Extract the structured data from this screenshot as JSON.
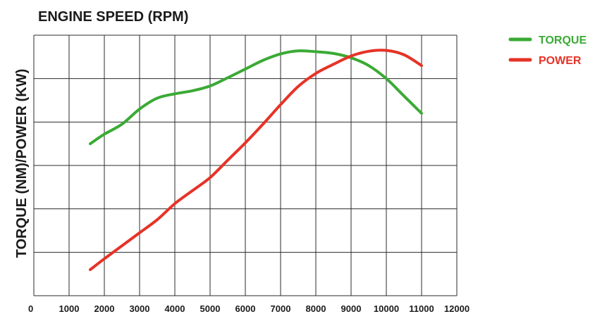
{
  "chart_data": {
    "type": "line",
    "title": "ENGINE SPEED (RPM)",
    "xlabel": "",
    "ylabel": "TORQUE (NM)/POWER (KW)",
    "x_ticks": [
      "0",
      "1000",
      "2000",
      "3000",
      "4000",
      "5000",
      "6000",
      "7000",
      "8000",
      "9000",
      "10000",
      "11000",
      "12000"
    ],
    "xlim": [
      0,
      12000
    ],
    "ylim": [
      0,
      6
    ],
    "y_tick_labels_shown": false,
    "grid": true,
    "legend_position": "top-right",
    "series": [
      {
        "name": "TORQUE",
        "color": "#3aaa35",
        "x": [
          1600,
          2000,
          2500,
          3000,
          3500,
          4000,
          4500,
          5000,
          5500,
          6000,
          6500,
          7000,
          7500,
          8000,
          8500,
          9000,
          9500,
          10000,
          10500,
          11000
        ],
        "y": [
          3.5,
          3.72,
          3.95,
          4.3,
          4.55,
          4.65,
          4.72,
          4.83,
          5.02,
          5.22,
          5.42,
          5.57,
          5.64,
          5.62,
          5.58,
          5.48,
          5.3,
          5.0,
          4.6,
          4.2
        ]
      },
      {
        "name": "POWER",
        "color": "#e63327",
        "x": [
          1600,
          2000,
          2500,
          3000,
          3500,
          4000,
          4500,
          5000,
          5500,
          6000,
          6500,
          7000,
          7500,
          8000,
          8500,
          9000,
          9500,
          10000,
          10500,
          11000
        ],
        "y": [
          0.6,
          0.85,
          1.15,
          1.45,
          1.75,
          2.12,
          2.42,
          2.72,
          3.12,
          3.52,
          3.95,
          4.4,
          4.82,
          5.12,
          5.33,
          5.52,
          5.63,
          5.65,
          5.55,
          5.3
        ]
      }
    ]
  }
}
